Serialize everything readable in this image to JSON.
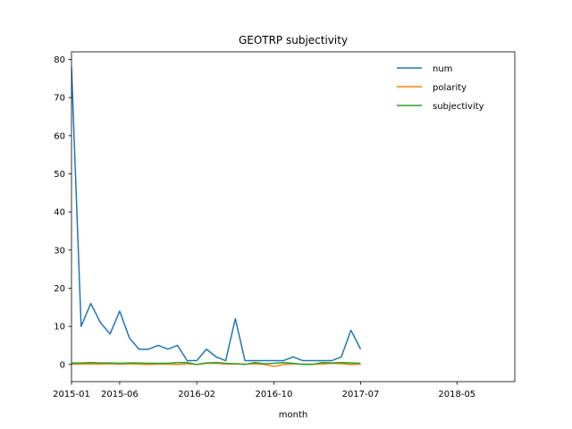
{
  "chart_data": {
    "type": "line",
    "title": "GEOTRP subjectivity",
    "xlabel": "month",
    "ylabel": "",
    "x": [
      "2015-01",
      "2015-02",
      "2015-03",
      "2015-04",
      "2015-05",
      "2015-06",
      "2015-07",
      "2015-08",
      "2015-09",
      "2015-10",
      "2015-11",
      "2015-12",
      "2016-01",
      "2016-02",
      "2016-03",
      "2016-04",
      "2016-05",
      "2016-06",
      "2016-07",
      "2016-08",
      "2016-09",
      "2016-10",
      "2016-11",
      "2016-12",
      "2017-01",
      "2017-02",
      "2017-03",
      "2017-04",
      "2017-05",
      "2017-06",
      "2017-07",
      "2017-08",
      "2017-09",
      "2017-10",
      "2017-11",
      "2017-12",
      "2018-01",
      "2018-02",
      "2018-03",
      "2018-04",
      "2018-05",
      "2018-06",
      "2018-07",
      "2018-08",
      "2018-09",
      "2018-10",
      "2018-11",
      "2018-12"
    ],
    "xticks": [
      "2015-01",
      "2015-06",
      "2016-02",
      "2016-10",
      "2017-07",
      "2018-05"
    ],
    "xlim": [
      "2015-01",
      "2018-11"
    ],
    "ylim": [
      -4.5,
      82
    ],
    "yticks": [
      0,
      10,
      20,
      30,
      40,
      50,
      60,
      70,
      80
    ],
    "legend_position": "top-right",
    "grid": false,
    "series": [
      {
        "name": "num",
        "color": "#1f77b4",
        "points": [
          [
            0,
            78
          ],
          [
            1,
            10
          ],
          [
            2,
            16
          ],
          [
            3,
            11
          ],
          [
            4,
            8
          ],
          [
            5,
            14
          ],
          [
            6,
            7
          ],
          [
            7,
            4
          ],
          [
            8,
            4
          ],
          [
            9,
            5
          ],
          [
            10,
            4
          ],
          [
            11,
            5
          ],
          [
            12,
            1
          ],
          [
            13,
            1
          ],
          [
            14,
            4
          ],
          [
            15,
            2
          ],
          [
            16,
            1
          ],
          [
            17,
            12
          ],
          [
            18,
            1
          ],
          [
            19,
            1
          ],
          [
            20,
            1
          ],
          [
            21,
            1
          ],
          [
            22,
            1
          ],
          [
            23,
            2
          ],
          [
            24,
            1
          ],
          [
            25,
            1
          ],
          [
            26,
            1
          ],
          [
            27,
            1
          ],
          [
            28,
            2
          ],
          [
            29,
            9
          ],
          [
            30,
            4
          ]
        ]
      },
      {
        "name": "polarity",
        "color": "#ff7f0e",
        "points": [
          [
            0,
            0.1
          ],
          [
            1,
            0.1
          ],
          [
            2,
            0.2
          ],
          [
            3,
            0.1
          ],
          [
            4,
            0.2
          ],
          [
            5,
            0.1
          ],
          [
            6,
            0.2
          ],
          [
            7,
            0.1
          ],
          [
            8,
            0
          ],
          [
            9,
            0.1
          ],
          [
            10,
            0.1
          ],
          [
            11,
            0
          ],
          [
            12,
            0.2
          ],
          [
            13,
            0
          ],
          [
            14,
            0.3
          ],
          [
            15,
            0.3
          ],
          [
            16,
            0.1
          ],
          [
            17,
            0.2
          ],
          [
            18,
            0.1
          ],
          [
            19,
            0.2
          ],
          [
            20,
            0
          ],
          [
            21,
            -0.5
          ],
          [
            22,
            0
          ],
          [
            23,
            0.2
          ],
          [
            24,
            0.1
          ],
          [
            25,
            0.1
          ],
          [
            26,
            0.1
          ],
          [
            27,
            0.3
          ],
          [
            28,
            0.2
          ],
          [
            29,
            0
          ],
          [
            30,
            0.1
          ]
        ]
      },
      {
        "name": "subjectivity",
        "color": "#2ca02c",
        "points": [
          [
            0,
            0.4
          ],
          [
            1,
            0.4
          ],
          [
            2,
            0.5
          ],
          [
            3,
            0.4
          ],
          [
            4,
            0.4
          ],
          [
            5,
            0.3
          ],
          [
            6,
            0.4
          ],
          [
            7,
            0.4
          ],
          [
            8,
            0.3
          ],
          [
            9,
            0.3
          ],
          [
            10,
            0.3
          ],
          [
            11,
            0.5
          ],
          [
            12,
            0.5
          ],
          [
            13,
            0
          ],
          [
            14,
            0.4
          ],
          [
            15,
            0.5
          ],
          [
            16,
            0.3
          ],
          [
            17,
            0.2
          ],
          [
            18,
            0
          ],
          [
            19,
            0.5
          ],
          [
            20,
            0.2
          ],
          [
            21,
            0.3
          ],
          [
            22,
            0.5
          ],
          [
            23,
            0.3
          ],
          [
            24,
            0
          ],
          [
            25,
            0
          ],
          [
            26,
            0.5
          ],
          [
            27,
            0.4
          ],
          [
            28,
            0.5
          ],
          [
            29,
            0.4
          ],
          [
            30,
            0.3
          ]
        ]
      }
    ]
  }
}
